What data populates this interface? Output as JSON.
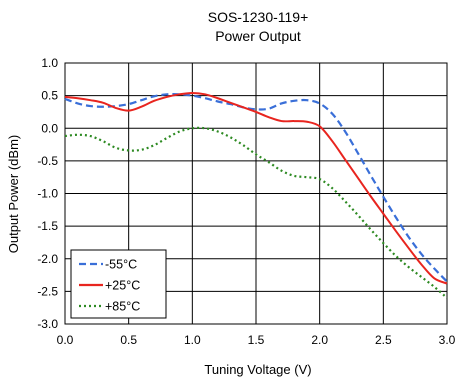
{
  "chart_data": {
    "type": "line",
    "title": "SOS-1230-119+",
    "subtitle": "Power Output",
    "xlabel": "Tuning Voltage (V)",
    "ylabel": "Output Power (dBm)",
    "xlim": [
      0.0,
      3.0
    ],
    "ylim": [
      -3.0,
      1.0
    ],
    "xticks": [
      "0.0",
      "0.5",
      "1.0",
      "1.5",
      "2.0",
      "2.5",
      "3.0"
    ],
    "yticks": [
      "1.0",
      "0.5",
      "0.0",
      "-0.5",
      "-1.0",
      "-1.5",
      "-2.0",
      "-2.5",
      "-3.0"
    ],
    "grid": true,
    "legend_position": "bottom-left",
    "series": [
      {
        "name": "-55°C",
        "color": "#3a6fd8",
        "dash": "dashed",
        "x": [
          0.0,
          0.1,
          0.2,
          0.3,
          0.4,
          0.5,
          0.6,
          0.7,
          0.8,
          0.9,
          1.0,
          1.1,
          1.2,
          1.3,
          1.4,
          1.5,
          1.6,
          1.7,
          1.8,
          1.9,
          2.0,
          2.1,
          2.2,
          2.3,
          2.4,
          2.5,
          2.6,
          2.7,
          2.8,
          2.9,
          3.0
        ],
        "y": [
          0.45,
          0.38,
          0.34,
          0.33,
          0.34,
          0.37,
          0.43,
          0.49,
          0.52,
          0.52,
          0.5,
          0.46,
          0.41,
          0.37,
          0.32,
          0.29,
          0.3,
          0.38,
          0.42,
          0.43,
          0.38,
          0.22,
          -0.05,
          -0.38,
          -0.72,
          -1.05,
          -1.37,
          -1.67,
          -1.93,
          -2.15,
          -2.35
        ]
      },
      {
        "name": "+25°C",
        "color": "#e8251f",
        "dash": "solid",
        "x": [
          0.0,
          0.1,
          0.2,
          0.3,
          0.4,
          0.5,
          0.6,
          0.7,
          0.8,
          0.9,
          1.0,
          1.1,
          1.2,
          1.3,
          1.4,
          1.5,
          1.6,
          1.7,
          1.8,
          1.9,
          2.0,
          2.1,
          2.2,
          2.3,
          2.4,
          2.5,
          2.6,
          2.7,
          2.8,
          2.9,
          3.0
        ],
        "y": [
          0.48,
          0.46,
          0.43,
          0.39,
          0.31,
          0.27,
          0.33,
          0.42,
          0.48,
          0.52,
          0.54,
          0.52,
          0.46,
          0.39,
          0.32,
          0.25,
          0.17,
          0.11,
          0.11,
          0.1,
          0.03,
          -0.2,
          -0.48,
          -0.76,
          -1.04,
          -1.31,
          -1.58,
          -1.84,
          -2.09,
          -2.3,
          -2.38
        ]
      },
      {
        "name": "+85°C",
        "color": "#2d8a22",
        "dash": "dotted",
        "x": [
          0.0,
          0.1,
          0.2,
          0.3,
          0.4,
          0.5,
          0.6,
          0.7,
          0.8,
          0.9,
          1.0,
          1.1,
          1.2,
          1.3,
          1.4,
          1.5,
          1.6,
          1.7,
          1.8,
          1.9,
          2.0,
          2.1,
          2.2,
          2.3,
          2.4,
          2.5,
          2.6,
          2.7,
          2.8,
          2.9,
          3.0
        ],
        "y": [
          -0.12,
          -0.1,
          -0.12,
          -0.2,
          -0.3,
          -0.34,
          -0.33,
          -0.26,
          -0.15,
          -0.05,
          0.0,
          0.0,
          -0.05,
          -0.14,
          -0.26,
          -0.4,
          -0.52,
          -0.65,
          -0.73,
          -0.75,
          -0.78,
          -0.92,
          -1.12,
          -1.33,
          -1.55,
          -1.76,
          -1.96,
          -2.13,
          -2.28,
          -2.43,
          -2.6
        ]
      }
    ]
  }
}
